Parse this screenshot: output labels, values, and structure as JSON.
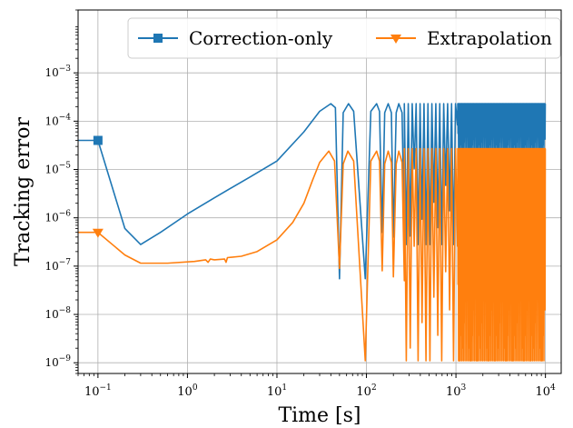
{
  "chart_data": {
    "type": "line",
    "title": "",
    "xlabel": "Time [s]",
    "ylabel": "Tracking error",
    "x_scale": "log",
    "y_scale": "log",
    "xlim": [
      0.06,
      15000
    ],
    "ylim": [
      6e-10,
      0.02
    ],
    "grid": true,
    "legend_placement": "top-center",
    "x_ticks": [
      {
        "value": 0.1,
        "mantissa": "10",
        "exp": "−1"
      },
      {
        "value": 1,
        "mantissa": "10",
        "exp": "0"
      },
      {
        "value": 10,
        "mantissa": "10",
        "exp": "1"
      },
      {
        "value": 100,
        "mantissa": "10",
        "exp": "2"
      },
      {
        "value": 1000,
        "mantissa": "10",
        "exp": "3"
      },
      {
        "value": 10000,
        "mantissa": "10",
        "exp": "4"
      }
    ],
    "y_ticks": [
      {
        "value": 1e-09,
        "mantissa": "10",
        "exp": "−9"
      },
      {
        "value": 1e-08,
        "mantissa": "10",
        "exp": "−8"
      },
      {
        "value": 1e-07,
        "mantissa": "10",
        "exp": "−7"
      },
      {
        "value": 1e-06,
        "mantissa": "10",
        "exp": "−6"
      },
      {
        "value": 1e-05,
        "mantissa": "10",
        "exp": "−5"
      },
      {
        "value": 0.0001,
        "mantissa": "10",
        "exp": "−4"
      },
      {
        "value": 0.001,
        "mantissa": "10",
        "exp": "−3"
      }
    ],
    "series": [
      {
        "name": "Correction-only",
        "color": "#1f77b4",
        "marker": "square",
        "marker_points": [
          {
            "x": 0.1,
            "y": 4e-05
          }
        ],
        "initial_value": 4e-05,
        "points": [
          [
            0.1,
            4e-05
          ],
          [
            0.2,
            6e-07
          ],
          [
            0.3,
            2.8e-07
          ],
          [
            0.5,
            5e-07
          ],
          [
            1,
            1.2e-06
          ],
          [
            2,
            2.6e-06
          ],
          [
            5,
            7e-06
          ],
          [
            10,
            1.5e-05
          ],
          [
            20,
            6e-05
          ],
          [
            30,
            0.00016
          ],
          [
            40,
            0.00023
          ],
          [
            45,
            0.00019
          ],
          [
            50,
            5.5e-08
          ],
          [
            55,
            0.00015
          ],
          [
            63,
            0.00023
          ],
          [
            72,
            0.00016
          ],
          [
            97,
            5.5e-08
          ],
          [
            112,
            0.00016
          ],
          [
            130,
            0.00023
          ],
          [
            140,
            0.00016
          ],
          [
            150,
            5e-07
          ],
          [
            160,
            0.00015
          ],
          [
            175,
            0.00023
          ],
          [
            190,
            0.00015
          ],
          [
            200,
            4e-07
          ],
          [
            215,
            0.00015
          ],
          [
            230,
            0.00023
          ],
          [
            250,
            0.00015
          ],
          [
            265,
            4e-07
          ]
        ],
        "band": {
          "x_start": 265,
          "x_end": 10000,
          "min": 2.8e-07,
          "max": 0.00023,
          "dense_from": 1000,
          "dense_min": 2.5e-05
        }
      },
      {
        "name": "Extrapolation",
        "color": "#ff7f0e",
        "marker": "triangle-down",
        "marker_points": [
          {
            "x": 0.1,
            "y": 5e-07
          }
        ],
        "initial_value": 5e-07,
        "points": [
          [
            0.1,
            5e-07
          ],
          [
            0.2,
            1.7e-07
          ],
          [
            0.3,
            1.15e-07
          ],
          [
            0.6,
            1.15e-07
          ],
          [
            1.2,
            1.25e-07
          ],
          [
            1.6,
            1.35e-07
          ],
          [
            1.7,
            1.2e-07
          ],
          [
            1.8,
            1.4e-07
          ],
          [
            2,
            1.35e-07
          ],
          [
            2.6,
            1.4e-07
          ],
          [
            2.7,
            1.2e-07
          ],
          [
            2.8,
            1.5e-07
          ],
          [
            4,
            1.6e-07
          ],
          [
            6,
            2e-07
          ],
          [
            10,
            3.5e-07
          ],
          [
            15,
            8e-07
          ],
          [
            20,
            2e-06
          ],
          [
            25,
            6e-06
          ],
          [
            30,
            1.4e-05
          ],
          [
            38,
            2.4e-05
          ],
          [
            44,
            1.5e-05
          ],
          [
            50,
            9e-08
          ],
          [
            55,
            1.3e-05
          ],
          [
            62,
            2.4e-05
          ],
          [
            72,
            1.5e-05
          ],
          [
            97,
            1.1e-09
          ],
          [
            112,
            1.5e-05
          ],
          [
            130,
            2.4e-05
          ],
          [
            140,
            1.5e-05
          ],
          [
            150,
            8e-08
          ],
          [
            160,
            1.3e-05
          ],
          [
            175,
            2.4e-05
          ],
          [
            190,
            1.4e-05
          ],
          [
            200,
            6e-08
          ],
          [
            215,
            1.3e-05
          ],
          [
            230,
            2.4e-05
          ],
          [
            250,
            1.4e-05
          ],
          [
            265,
            5e-08
          ]
        ],
        "band": {
          "x_start": 265,
          "x_end": 10000,
          "min": 1.1e-09,
          "max": 2.7e-05,
          "dense_from": 1000,
          "dense_min": 1.1e-09
        }
      }
    ]
  }
}
